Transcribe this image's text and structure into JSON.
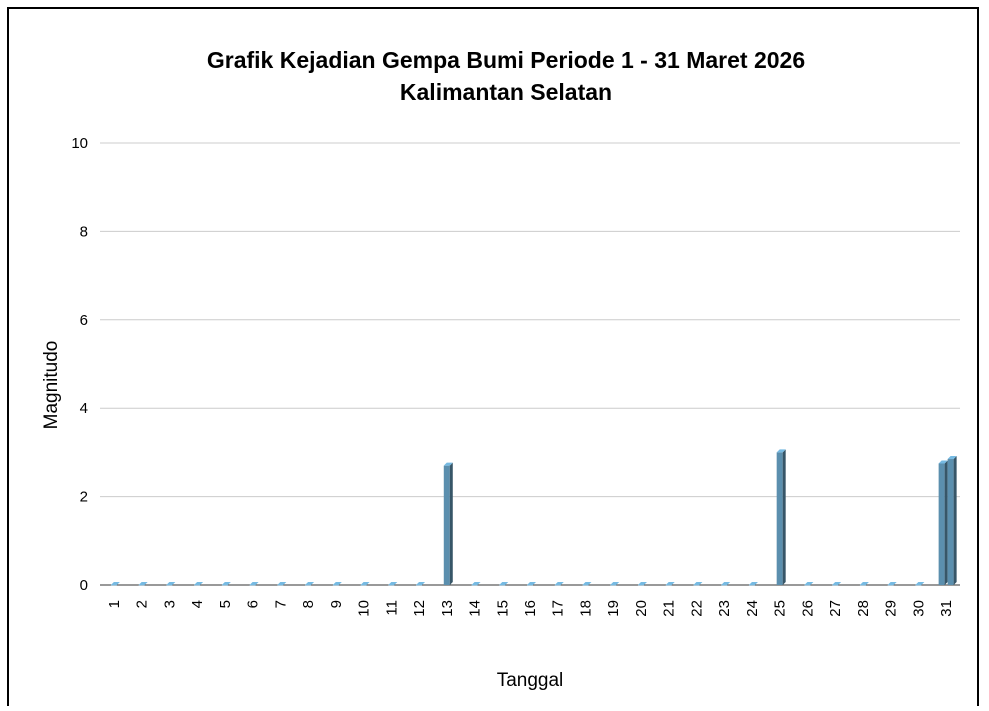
{
  "chart_data": {
    "type": "bar",
    "title": "Grafik Kejadian Gempa Bumi Periode 1 - 31 Maret 2026",
    "subtitle": "Kalimantan Selatan",
    "x_label": "Tanggal",
    "y_label": "Magnitudo",
    "categories": [
      "1",
      "2",
      "3",
      "4",
      "5",
      "6",
      "7",
      "8",
      "9",
      "10",
      "11",
      "12",
      "13",
      "14",
      "15",
      "16",
      "17",
      "18",
      "19",
      "20",
      "21",
      "22",
      "23",
      "24",
      "25",
      "26",
      "27",
      "28",
      "29",
      "30",
      "31"
    ],
    "series": [
      {
        "name": "Magnitudo",
        "color": "#5b8fae",
        "values": [
          0,
          0,
          0,
          0,
          0,
          0,
          0,
          0,
          0,
          0,
          0,
          0,
          2.7,
          0,
          0,
          0,
          0,
          0,
          0,
          0,
          0,
          0,
          0,
          0,
          3.0,
          0,
          0,
          0,
          0,
          0,
          2.75
        ]
      },
      {
        "name": "Magnitudo",
        "color": "#5b8fae",
        "values": [
          null,
          null,
          null,
          null,
          null,
          null,
          null,
          null,
          null,
          null,
          null,
          null,
          null,
          null,
          null,
          null,
          null,
          null,
          null,
          null,
          null,
          null,
          null,
          null,
          null,
          null,
          null,
          null,
          null,
          null,
          2.85
        ]
      }
    ],
    "ylim": [
      0,
      10
    ],
    "yticks": [
      0,
      2,
      4,
      6,
      8,
      10
    ],
    "grid": true
  }
}
